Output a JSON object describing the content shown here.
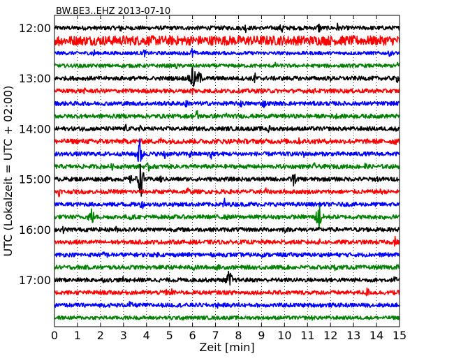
{
  "chart_data": {
    "type": "line",
    "title": "BW.BE3..EHZ 2013-07-10",
    "xlabel": "Zeit  [min]",
    "ylabel": "UTC (Lokalzeit = UTC + 02:00)",
    "xlim": [
      0,
      15
    ],
    "x_ticks": [
      "0",
      "1",
      "2",
      "3",
      "4",
      "5",
      "6",
      "7",
      "8",
      "9",
      "10",
      "11",
      "12",
      "13",
      "14",
      "15"
    ],
    "y_ticks": [
      "12:00",
      "13:00",
      "14:00",
      "15:00",
      "16:00",
      "17:00"
    ],
    "grid": "vertical dotted lines",
    "trace_colors": [
      "#000000",
      "#ff0000",
      "#0000ff",
      "#008000"
    ],
    "traces": [
      {
        "start": "12:00",
        "color": "#000000",
        "amp": 0.35,
        "events": [
          [
            2.9,
            1.0
          ],
          [
            8.3,
            0.9
          ],
          [
            9.9,
            1.2
          ],
          [
            11.5,
            1.1
          ],
          [
            12.3,
            0.9
          ]
        ]
      },
      {
        "start": "12:15",
        "color": "#ff0000",
        "amp": 0.8,
        "events": [
          [
            0.2,
            1.2
          ],
          [
            3.2,
            1.0
          ],
          [
            4.3,
            1.0
          ],
          [
            5.2,
            1.2
          ],
          [
            14.5,
            0.8
          ]
        ]
      },
      {
        "start": "12:30",
        "color": "#0000ff",
        "amp": 0.3,
        "events": [
          [
            1.7,
            0.9
          ],
          [
            3.9,
            0.8
          ],
          [
            6.0,
            1.1
          ],
          [
            14.6,
            0.8
          ]
        ]
      },
      {
        "start": "12:45",
        "color": "#008000",
        "amp": 0.3,
        "events": [
          [
            1.2,
            0.6
          ],
          [
            5.3,
            0.7
          ],
          [
            9.6,
            0.6
          ],
          [
            15.0,
            1.4
          ]
        ]
      },
      {
        "start": "13:00",
        "color": "#000000",
        "amp": 0.35,
        "events": [
          [
            6.0,
            3.0
          ],
          [
            6.3,
            1.6
          ],
          [
            8.7,
            1.2
          ],
          [
            12.0,
            0.6
          ],
          [
            14.9,
            0.9
          ]
        ]
      },
      {
        "start": "13:15",
        "color": "#ff0000",
        "amp": 0.35,
        "events": [
          [
            1.3,
            0.6
          ],
          [
            6.0,
            1.0
          ],
          [
            11.3,
            0.6
          ]
        ]
      },
      {
        "start": "13:30",
        "color": "#0000ff",
        "amp": 0.35,
        "events": [
          [
            2.8,
            0.7
          ],
          [
            5.7,
            1.0
          ],
          [
            8.1,
            0.8
          ],
          [
            9.1,
            0.9
          ]
        ]
      },
      {
        "start": "13:45",
        "color": "#008000",
        "amp": 0.35,
        "events": [
          [
            2.1,
            0.6
          ],
          [
            6.2,
            1.3
          ],
          [
            7.5,
            0.9
          ],
          [
            12.2,
            0.8
          ]
        ]
      },
      {
        "start": "14:00",
        "color": "#000000",
        "amp": 0.35,
        "events": [
          [
            1.2,
            0.6
          ],
          [
            3.1,
            0.8
          ],
          [
            3.7,
            0.8
          ],
          [
            9.3,
            1.0
          ],
          [
            14.9,
            0.8
          ]
        ]
      },
      {
        "start": "14:15",
        "color": "#ff0000",
        "amp": 0.4,
        "events": [
          [
            1.9,
            1.0
          ],
          [
            4.6,
            0.9
          ],
          [
            10.6,
            0.8
          ],
          [
            14.8,
            0.9
          ]
        ]
      },
      {
        "start": "14:30",
        "color": "#0000ff",
        "amp": 0.35,
        "events": [
          [
            3.7,
            3.0
          ],
          [
            4.8,
            1.2
          ],
          [
            5.9,
            1.0
          ],
          [
            6.8,
            1.3
          ],
          [
            10.8,
            0.9
          ]
        ]
      },
      {
        "start": "14:45",
        "color": "#008000",
        "amp": 0.35,
        "events": [
          [
            2.5,
            0.7
          ],
          [
            4.1,
            1.0
          ],
          [
            11.3,
            0.7
          ],
          [
            13.5,
            0.9
          ]
        ]
      },
      {
        "start": "15:00",
        "color": "#000000",
        "amp": 0.35,
        "events": [
          [
            3.3,
            0.9
          ],
          [
            3.75,
            3.5
          ],
          [
            4.6,
            0.9
          ],
          [
            10.4,
            1.5
          ],
          [
            14.0,
            0.8
          ]
        ]
      },
      {
        "start": "15:15",
        "color": "#ff0000",
        "amp": 0.35,
        "events": [
          [
            0.2,
            0.9
          ],
          [
            5.8,
            0.9
          ],
          [
            9.2,
            0.8
          ],
          [
            14.2,
            0.7
          ]
        ]
      },
      {
        "start": "15:30",
        "color": "#0000ff",
        "amp": 0.35,
        "events": [
          [
            3.0,
            0.9
          ],
          [
            3.8,
            1.0
          ],
          [
            7.4,
            1.2
          ],
          [
            8.6,
            0.8
          ],
          [
            9.9,
            0.6
          ]
        ]
      },
      {
        "start": "15:45",
        "color": "#008000",
        "amp": 0.35,
        "events": [
          [
            1.6,
            2.0
          ],
          [
            3.3,
            0.8
          ],
          [
            7.5,
            0.6
          ],
          [
            11.5,
            3.0
          ],
          [
            14.3,
            0.6
          ]
        ]
      },
      {
        "start": "16:00",
        "color": "#000000",
        "amp": 0.35,
        "events": [
          [
            0.4,
            0.8
          ],
          [
            2.7,
            0.7
          ],
          [
            10.0,
            0.8
          ],
          [
            13.5,
            0.9
          ]
        ]
      },
      {
        "start": "16:15",
        "color": "#ff0000",
        "amp": 0.35,
        "events": [
          [
            9.9,
            0.8
          ],
          [
            11.5,
            0.7
          ],
          [
            14.8,
            1.1
          ]
        ]
      },
      {
        "start": "16:30",
        "color": "#0000ff",
        "amp": 0.35,
        "events": [
          [
            2.2,
            1.1
          ],
          [
            4.5,
            0.6
          ],
          [
            9.0,
            0.6
          ]
        ]
      },
      {
        "start": "16:45",
        "color": "#008000",
        "amp": 0.35,
        "events": [
          [
            6.1,
            0.9
          ],
          [
            7.1,
            0.7
          ],
          [
            12.2,
            0.7
          ],
          [
            14.9,
            0.8
          ]
        ]
      },
      {
        "start": "17:00",
        "color": "#000000",
        "amp": 0.35,
        "events": [
          [
            2.1,
            0.6
          ],
          [
            3.0,
            0.7
          ],
          [
            7.6,
            2.2
          ],
          [
            11.8,
            0.6
          ],
          [
            14.8,
            0.8
          ]
        ]
      },
      {
        "start": "17:15",
        "color": "#ff0000",
        "amp": 0.35,
        "events": [
          [
            4.8,
            1.0
          ],
          [
            5.1,
            0.8
          ],
          [
            13.6,
            1.0
          ],
          [
            14.8,
            0.6
          ]
        ]
      },
      {
        "start": "17:30",
        "color": "#0000ff",
        "amp": 0.35,
        "events": [
          [
            3.3,
            0.9
          ],
          [
            7.1,
            0.6
          ],
          [
            8.0,
            0.6
          ]
        ]
      },
      {
        "start": "17:45",
        "color": "#008000",
        "amp": 0.3,
        "events": [
          [
            0.8,
            0.5
          ],
          [
            5.1,
            0.6
          ],
          [
            5.6,
            0.7
          ],
          [
            11.2,
            0.6
          ]
        ]
      }
    ]
  }
}
